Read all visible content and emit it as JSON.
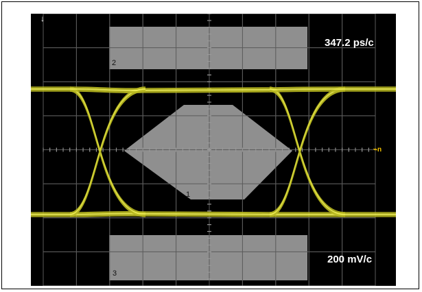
{
  "readouts": {
    "timebase": "347.2 ps/c",
    "voltscale": "200 mV/c"
  },
  "mask_zones": [
    {
      "id": "2",
      "label": "2"
    },
    {
      "id": "1",
      "label": "1"
    },
    {
      "id": "3",
      "label": "3"
    }
  ],
  "markers": {
    "trigger": "↓",
    "level": "⌁n"
  },
  "colors": {
    "screen_bg": "#000000",
    "grid": "#5a5a5a",
    "mask": "#8f8f8f",
    "trace": "#f2f25a",
    "trace_glow": "#b8b820",
    "readout_text": "#ffffff"
  },
  "display": {
    "grid_divisions_x": 10,
    "grid_divisions_y": 8,
    "eye_diagram": true
  }
}
